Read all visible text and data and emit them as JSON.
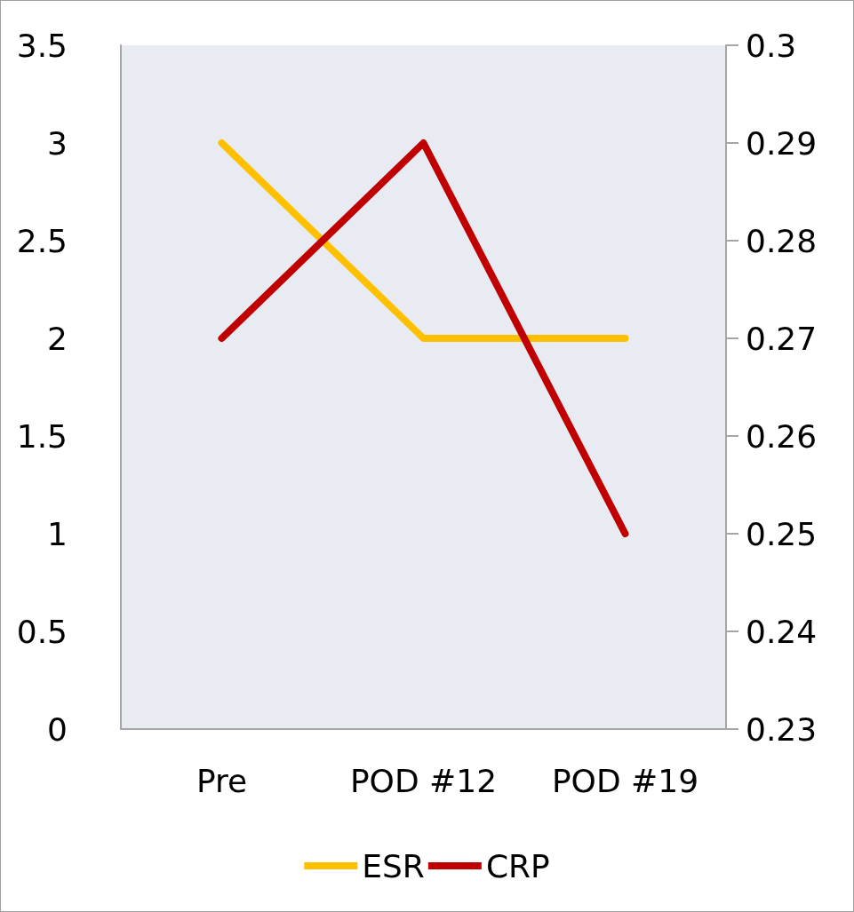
{
  "chart_data": {
    "type": "line",
    "categories": [
      "Pre",
      "POD #12",
      "POD #19"
    ],
    "series": [
      {
        "name": "ESR",
        "color": "#ffc000",
        "values": [
          3,
          2,
          2
        ]
      },
      {
        "name": "CRP",
        "color": "#c00000",
        "values": [
          0.27,
          0.29,
          0.25
        ],
        "axis": "y2"
      }
    ],
    "ylim": [
      0,
      3.5
    ],
    "yticks": [
      0,
      0.5,
      1,
      1.5,
      2,
      2.5,
      3,
      3.5
    ],
    "y2lim": [
      0.23,
      0.3
    ],
    "y2ticks": [
      0.23,
      0.24,
      0.25,
      0.26,
      0.27,
      0.28,
      0.29,
      0.3
    ],
    "grid": false,
    "legend": "bottom",
    "marker": "none",
    "line_style": "solid"
  }
}
